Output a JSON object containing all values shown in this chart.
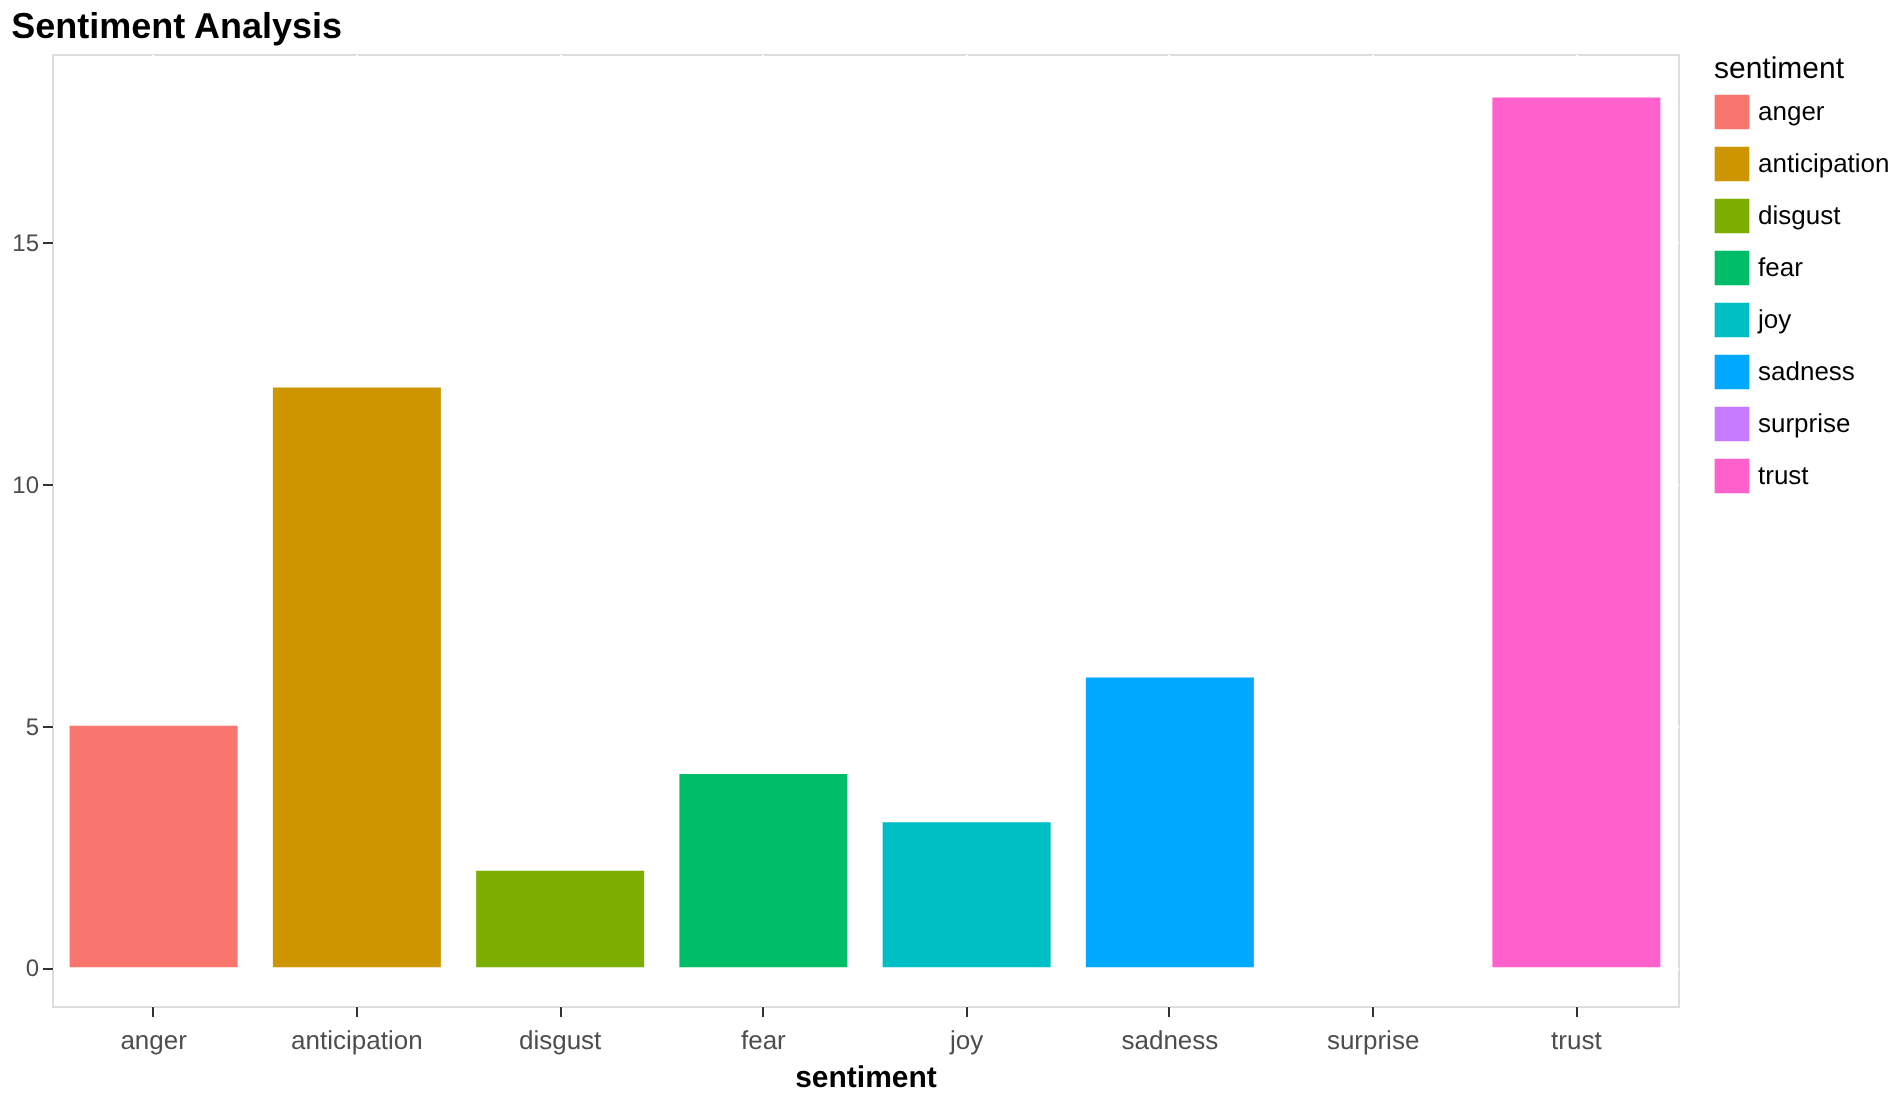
{
  "chart_data": {
    "type": "bar",
    "title": "Sentiment Analysis",
    "xlabel": "sentiment",
    "legend_title": "sentiment",
    "categories": [
      "anger",
      "anticipation",
      "disgust",
      "fear",
      "joy",
      "sadness",
      "surprise",
      "trust"
    ],
    "series": [
      {
        "name": "anger",
        "color": "#f8766d",
        "values": [
          5,
          null,
          null,
          null,
          null,
          null,
          null,
          null
        ]
      },
      {
        "name": "anticipation",
        "color": "#cd9600",
        "values": [
          null,
          12,
          null,
          null,
          null,
          null,
          null,
          null
        ]
      },
      {
        "name": "disgust",
        "color": "#7cae00",
        "values": [
          null,
          null,
          2,
          null,
          null,
          null,
          null,
          null
        ]
      },
      {
        "name": "fear",
        "color": "#00be67",
        "values": [
          null,
          null,
          null,
          4,
          null,
          null,
          null,
          null
        ]
      },
      {
        "name": "joy",
        "color": "#00bfc4",
        "values": [
          null,
          null,
          null,
          null,
          3,
          null,
          null,
          null
        ]
      },
      {
        "name": "sadness",
        "color": "#00a9ff",
        "values": [
          null,
          null,
          null,
          null,
          null,
          6,
          null,
          null
        ]
      },
      {
        "name": "surprise",
        "color": "#c77cff",
        "values": [
          null,
          null,
          null,
          null,
          null,
          null,
          0,
          null
        ]
      },
      {
        "name": "trust",
        "color": "#ff61cc",
        "values": [
          null,
          null,
          null,
          null,
          null,
          null,
          null,
          18
        ]
      }
    ],
    "ylim": [
      -0.8,
      18.9
    ],
    "yticks": [
      0,
      5,
      10,
      15
    ],
    "grid": true,
    "legend": "right"
  }
}
